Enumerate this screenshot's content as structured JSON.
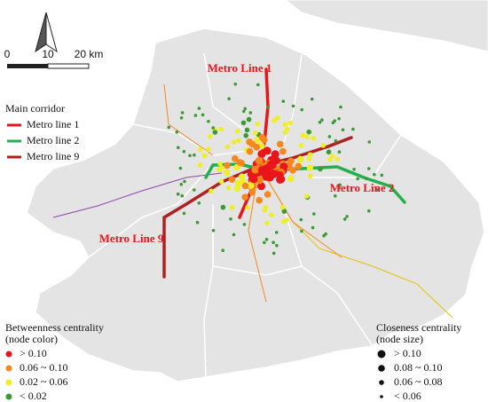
{
  "scale_bar": {
    "labels": [
      "0",
      "10",
      "20 km"
    ]
  },
  "main_corridor": {
    "title": "Main corridor",
    "items": [
      {
        "label": "Metro line 1",
        "color": "#e8161b"
      },
      {
        "label": "Metro line 2",
        "color": "#22b04b"
      },
      {
        "label": "Metro line 9",
        "color": "#b0201f"
      }
    ]
  },
  "map_labels": [
    "Metro Line 1",
    "Metro Line 2",
    "Metro Line 9"
  ],
  "betweenness_legend": {
    "title": [
      "Betweenness centrality",
      "(node color)"
    ],
    "items": [
      {
        "label": "> 0.10",
        "color": "#e8161b"
      },
      {
        "label": "0.06 ~ 0.10",
        "color": "#f7861e"
      },
      {
        "label": "0.02 ~ 0.06",
        "color": "#eeee2a"
      },
      {
        "label": "< 0.02",
        "color": "#3b9a35"
      }
    ]
  },
  "closeness_legend": {
    "title": [
      "Closeness centrality",
      "(node size)"
    ],
    "items": [
      "> 0.10",
      "0.08 ~ 0.10",
      "0.06 ~ 0.08",
      "< 0.06"
    ]
  }
}
